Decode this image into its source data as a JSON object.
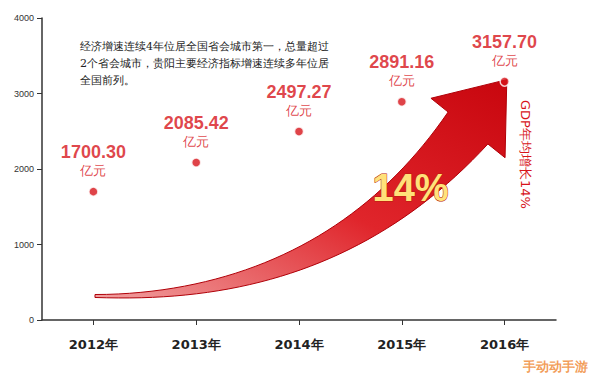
{
  "chart_data": {
    "type": "scatter",
    "categories": [
      "2012年",
      "2013年",
      "2014年",
      "2015年",
      "2016年"
    ],
    "values": [
      1700.3,
      2085.42,
      2497.27,
      2891.16,
      3157.7
    ],
    "value_labels": [
      "1700.30\n亿元",
      "2085.42\n亿元",
      "2497.27\n亿元",
      "2891.16\n亿元",
      "3157.70\n亿元"
    ],
    "data_labels": true,
    "color": "#d7141a",
    "ylim": [
      0,
      4000
    ],
    "yticks": [
      0,
      1000,
      2000,
      3000,
      4000
    ],
    "grid": false,
    "annotations": {
      "note": "经济增速连续4年位居全国省会城市第一，总量超过2个省会城市，贵阳主要经济指标增速连续多年位居全国前列。",
      "arrow_label": "14%",
      "side_label": "GDP年均增长14%",
      "watermark": "手动动手游"
    }
  }
}
